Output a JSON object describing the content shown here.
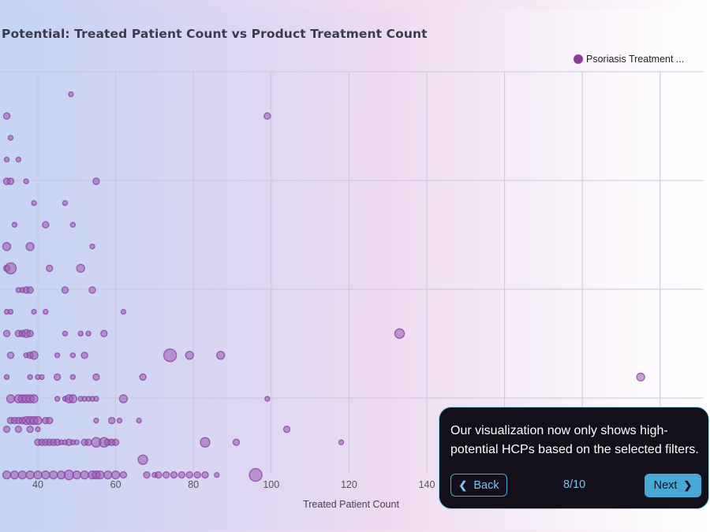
{
  "chart_data": {
    "type": "scatter",
    "title": "Potential: Treated Patient Count vs Product Treatment Count",
    "xlabel": "Treated Patient Count",
    "ylabel": "",
    "xlim": [
      32,
      200
    ],
    "x_ticks": [
      40,
      60,
      80,
      100,
      120,
      140
    ],
    "grid": true,
    "legend_position": "top-right",
    "series": [
      {
        "name": "Psoriasis Treatment ...",
        "color": "#8e3b97",
        "points": [
          [
            48.5,
            1,
            3
          ],
          [
            32,
            2,
            4
          ],
          [
            99,
            2,
            4
          ],
          [
            33,
            3,
            3
          ],
          [
            32,
            4,
            3
          ],
          [
            35,
            4,
            3
          ],
          [
            32,
            5,
            4
          ],
          [
            33,
            5,
            4
          ],
          [
            37,
            5,
            3
          ],
          [
            55,
            5,
            4
          ],
          [
            39,
            6,
            3
          ],
          [
            47,
            6,
            3
          ],
          [
            34,
            7,
            3
          ],
          [
            42,
            7,
            4
          ],
          [
            49,
            7,
            3
          ],
          [
            32,
            8,
            5
          ],
          [
            38,
            8,
            5
          ],
          [
            54,
            8,
            3
          ],
          [
            32,
            9,
            4
          ],
          [
            33,
            9,
            7
          ],
          [
            43,
            9,
            4
          ],
          [
            51,
            9,
            5
          ],
          [
            35,
            10,
            3
          ],
          [
            36,
            10,
            3
          ],
          [
            37,
            10,
            4
          ],
          [
            38,
            10,
            4
          ],
          [
            47,
            10,
            4
          ],
          [
            54,
            10,
            4
          ],
          [
            32,
            11,
            3
          ],
          [
            33,
            11,
            3
          ],
          [
            39,
            11,
            3
          ],
          [
            42,
            11,
            3
          ],
          [
            62,
            11,
            3
          ],
          [
            32,
            12,
            4
          ],
          [
            35,
            12,
            4
          ],
          [
            36,
            12,
            4
          ],
          [
            37,
            12,
            5
          ],
          [
            38,
            12,
            4
          ],
          [
            47,
            12,
            3
          ],
          [
            51,
            12,
            3
          ],
          [
            53,
            12,
            3
          ],
          [
            57,
            12,
            4
          ],
          [
            133,
            12,
            6
          ],
          [
            33,
            13,
            4
          ],
          [
            37,
            13,
            3
          ],
          [
            38,
            13,
            4
          ],
          [
            39,
            13,
            5
          ],
          [
            45,
            13,
            3
          ],
          [
            49,
            13,
            3
          ],
          [
            52,
            13,
            4
          ],
          [
            74,
            13,
            8
          ],
          [
            79,
            13,
            5
          ],
          [
            87,
            13,
            5
          ],
          [
            32,
            14,
            3
          ],
          [
            38,
            14,
            3
          ],
          [
            40,
            14,
            3
          ],
          [
            41,
            14,
            3
          ],
          [
            45,
            14,
            4
          ],
          [
            49,
            14,
            3
          ],
          [
            55,
            14,
            4
          ],
          [
            67,
            14,
            4
          ],
          [
            195,
            14,
            5
          ],
          [
            33,
            15,
            5
          ],
          [
            35,
            15,
            5
          ],
          [
            36,
            15,
            5
          ],
          [
            37,
            15,
            5
          ],
          [
            38,
            15,
            5
          ],
          [
            39,
            15,
            5
          ],
          [
            45,
            15,
            3
          ],
          [
            47,
            15,
            3
          ],
          [
            48,
            15,
            5
          ],
          [
            49,
            15,
            5
          ],
          [
            51,
            15,
            3
          ],
          [
            52,
            15,
            3
          ],
          [
            53,
            15,
            3
          ],
          [
            54,
            15,
            3
          ],
          [
            55,
            15,
            3
          ],
          [
            62,
            15,
            5
          ],
          [
            99,
            15,
            3
          ],
          [
            33,
            16,
            4
          ],
          [
            34,
            16,
            4
          ],
          [
            35,
            16,
            4
          ],
          [
            36,
            16,
            4
          ],
          [
            37,
            16,
            5
          ],
          [
            38,
            16,
            5
          ],
          [
            39,
            16,
            5
          ],
          [
            40,
            16,
            5
          ],
          [
            42,
            16,
            4
          ],
          [
            43,
            16,
            4
          ],
          [
            55,
            16,
            3
          ],
          [
            59,
            16,
            4
          ],
          [
            61,
            16,
            3
          ],
          [
            66,
            16,
            3
          ],
          [
            32,
            16.4,
            4
          ],
          [
            35,
            16.4,
            4
          ],
          [
            38,
            16.4,
            4
          ],
          [
            40,
            16.4,
            3
          ],
          [
            104,
            16.4,
            4
          ],
          [
            40,
            17,
            4
          ],
          [
            41,
            17,
            4
          ],
          [
            42,
            17,
            4
          ],
          [
            43,
            17,
            4
          ],
          [
            44,
            17,
            4
          ],
          [
            45,
            17,
            4
          ],
          [
            46,
            17,
            3
          ],
          [
            47,
            17,
            3
          ],
          [
            48,
            17,
            4
          ],
          [
            49,
            17,
            3
          ],
          [
            50,
            17,
            3
          ],
          [
            52,
            17,
            4
          ],
          [
            53,
            17,
            4
          ],
          [
            55,
            17,
            6
          ],
          [
            57,
            17,
            6
          ],
          [
            58,
            17,
            4
          ],
          [
            59,
            17,
            4
          ],
          [
            60,
            17,
            4
          ],
          [
            83,
            17,
            6
          ],
          [
            91,
            17,
            4
          ],
          [
            118,
            17,
            3
          ],
          [
            67,
            17.8,
            6
          ],
          [
            32,
            18.5,
            5
          ],
          [
            34,
            18.5,
            5
          ],
          [
            36,
            18.5,
            5
          ],
          [
            38,
            18.5,
            5
          ],
          [
            40,
            18.5,
            5
          ],
          [
            42,
            18.5,
            5
          ],
          [
            44,
            18.5,
            5
          ],
          [
            46,
            18.5,
            5
          ],
          [
            48,
            18.5,
            6
          ],
          [
            50,
            18.5,
            5
          ],
          [
            52,
            18.5,
            5
          ],
          [
            54,
            18.5,
            5
          ],
          [
            55,
            18.5,
            5
          ],
          [
            56,
            18.5,
            5
          ],
          [
            58,
            18.5,
            5
          ],
          [
            60,
            18.5,
            5
          ],
          [
            62,
            18.5,
            4
          ],
          [
            68,
            18.5,
            4
          ],
          [
            70,
            18.5,
            3
          ],
          [
            71,
            18.5,
            4
          ],
          [
            73,
            18.5,
            4
          ],
          [
            75,
            18.5,
            4
          ],
          [
            77,
            18.5,
            4
          ],
          [
            79,
            18.5,
            4
          ],
          [
            81,
            18.5,
            4
          ],
          [
            83,
            18.5,
            4
          ],
          [
            86,
            18.5,
            3
          ],
          [
            96,
            18.5,
            8
          ]
        ]
      }
    ]
  },
  "tour": {
    "message": "Our visualization now only shows high-potential HCPs based on the selected filters.",
    "back_label": "Back",
    "next_label": "Next",
    "counter": "8/10"
  }
}
